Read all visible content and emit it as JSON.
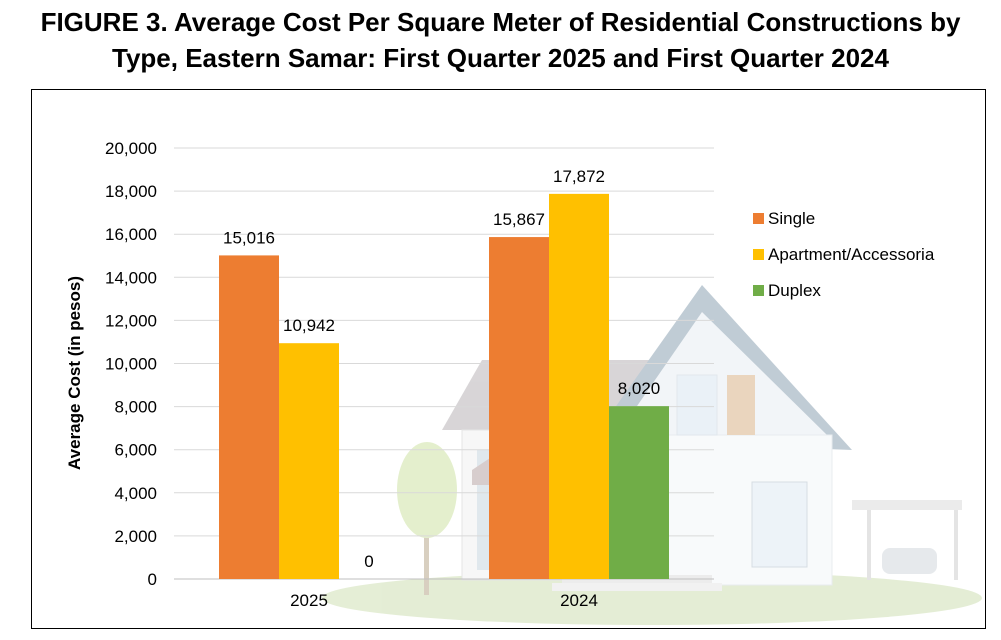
{
  "title": {
    "line1": "FIGURE 3. Average Cost Per Square Meter of Residential Constructions by",
    "line2": "Type, Eastern Samar: First Quarter 2025 and First Quarter 2024"
  },
  "chart_data": {
    "type": "bar",
    "categories": [
      "2025",
      "2024"
    ],
    "series": [
      {
        "name": "Single",
        "values": [
          15016,
          15867
        ],
        "labels": [
          "15,016",
          "15,867"
        ],
        "color": "#ED7D31"
      },
      {
        "name": "Apartment/Accessoria",
        "values": [
          10942,
          17872
        ],
        "labels": [
          "10,942",
          "17,872"
        ],
        "color": "#FFC000"
      },
      {
        "name": "Duplex",
        "values": [
          0,
          8020
        ],
        "labels": [
          "0",
          "8,020"
        ],
        "color": "#70AD47"
      }
    ],
    "ylabel": "Average Cost (in pesos)",
    "xlabel": "",
    "ylim": [
      0,
      20000
    ],
    "yticks": [
      0,
      2000,
      4000,
      6000,
      8000,
      10000,
      12000,
      14000,
      16000,
      18000,
      20000
    ],
    "ytick_labels": [
      "0",
      "2,000",
      "4,000",
      "6,000",
      "8,000",
      "10,000",
      "12,000",
      "14,000",
      "16,000",
      "18,000",
      "20,000"
    ],
    "grid": true,
    "legend_position": "right",
    "background_image": "house-illustration"
  }
}
